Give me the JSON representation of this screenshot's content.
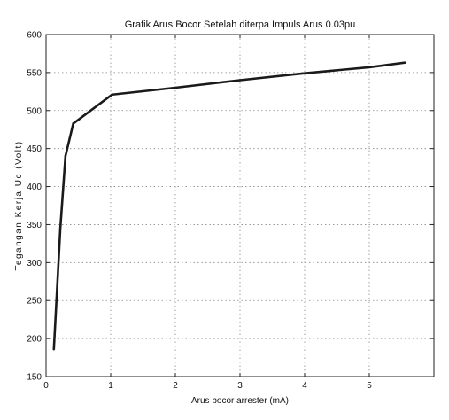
{
  "chart_data": {
    "type": "line",
    "title": "Grafik Arus Bocor Setelah diterpa Impuls Arus 0.03pu",
    "xlabel": "Arus bocor arrester (mA)",
    "ylabel": "Tegangan Kerja Uc (Volt)",
    "xlim": [
      0,
      6
    ],
    "ylim": [
      150,
      600
    ],
    "xticks": [
      "0",
      "1",
      "2",
      "3",
      "4",
      "5"
    ],
    "yticks": [
      "150",
      "200",
      "250",
      "300",
      "350",
      "400",
      "450",
      "500",
      "550",
      "600"
    ],
    "grid": true,
    "series": [
      {
        "color": "#1a1a1a",
        "x": [
          0.12,
          0.22,
          0.3,
          0.42,
          1.02,
          2.0,
          3.0,
          4.0,
          5.0,
          5.55
        ],
        "y": [
          186,
          345,
          440,
          483,
          521,
          530,
          540,
          549,
          557,
          563
        ]
      }
    ]
  }
}
